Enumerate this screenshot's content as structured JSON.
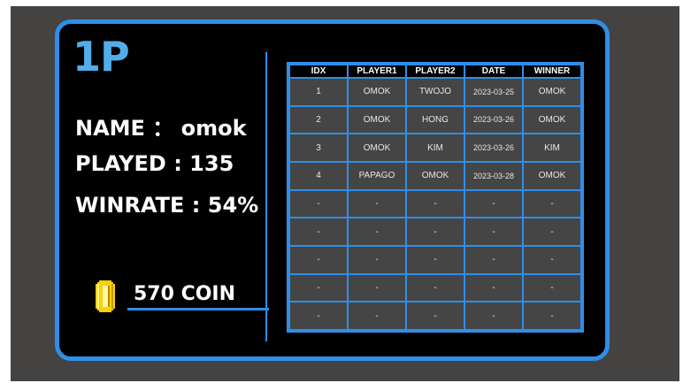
{
  "player": {
    "title": "1P",
    "name_line": "NAME ： omok",
    "played_line": "PLAYED : 135",
    "winrate_line": "WINRATE : 54%",
    "coin_text": "570 COIN"
  },
  "colors": {
    "accent": "#2f8ee8",
    "title": "#52aee8",
    "coin": "#f5d20a",
    "panel_bg": "#000000",
    "stage_bg": "#454342",
    "cell_bg": "#454545"
  },
  "icons": {
    "coin": "coin-icon"
  },
  "table": {
    "headers": [
      "IDX",
      "PLAYER1",
      "PLAYER2",
      "DATE",
      "WINNER"
    ],
    "rows": [
      [
        "1",
        "OMOK",
        "TWOJO",
        "2023-03-25",
        "OMOK"
      ],
      [
        "2",
        "OMOK",
        "HONG",
        "2023-03-26",
        "OMOK"
      ],
      [
        "3",
        "OMOK",
        "KIM",
        "2023-03-26",
        "KIM"
      ],
      [
        "4",
        "PAPAGO",
        "OMOK",
        "2023-03-28",
        "OMOK"
      ],
      [
        "-",
        "-",
        "-",
        "-",
        "-"
      ],
      [
        "-",
        "-",
        "-",
        "-",
        "-"
      ],
      [
        "-",
        "-",
        "-",
        "-",
        "-"
      ],
      [
        "-",
        "-",
        "-",
        "-",
        "-"
      ],
      [
        "-",
        "-",
        "-",
        "-",
        "-"
      ]
    ]
  }
}
